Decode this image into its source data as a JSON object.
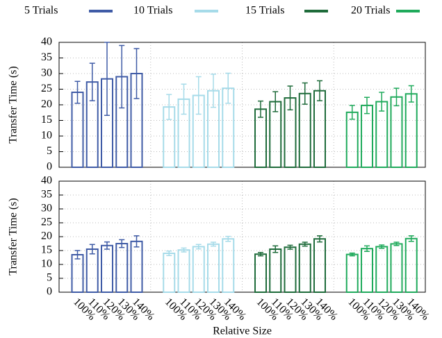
{
  "chart_data": [
    {
      "type": "bar",
      "ylabel": "Transfer Time (s)",
      "ylim": [
        0,
        40
      ],
      "yticks": [
        0,
        5,
        10,
        15,
        20,
        25,
        30,
        35,
        40
      ],
      "grid": true,
      "legend": "top",
      "series": [
        {
          "name": "5 Trials",
          "color": "#3f5ba6",
          "values": [
            24,
            27.3,
            28.3,
            29,
            30
          ],
          "errors": [
            3.5,
            6,
            11.7,
            10,
            8
          ]
        },
        {
          "name": "10 Trials",
          "color": "#a6dbe9",
          "values": [
            19.3,
            21.8,
            23,
            24.5,
            25.3
          ],
          "errors": [
            4,
            4.8,
            6,
            5.3,
            4.8
          ]
        },
        {
          "name": "15 Trials",
          "color": "#1e6b3a",
          "values": [
            18.6,
            21,
            22.2,
            23.6,
            24.5
          ],
          "errors": [
            2.6,
            3.2,
            3.8,
            3.4,
            3.2
          ]
        },
        {
          "name": "20 Trials",
          "color": "#1faa5b",
          "values": [
            17.6,
            19.8,
            21,
            22.5,
            23.5
          ],
          "errors": [
            2.2,
            2.6,
            3,
            2.8,
            2.6
          ]
        }
      ]
    },
    {
      "type": "bar",
      "ylabel": "Transfer Time (s)",
      "xlabel": "Relative Size",
      "categories": [
        "100%",
        "110%",
        "120%",
        "130%",
        "140%"
      ],
      "ylim": [
        0,
        40
      ],
      "yticks": [
        0,
        5,
        10,
        15,
        20,
        25,
        30,
        35,
        40
      ],
      "grid": true,
      "series": [
        {
          "color": "#3f5ba6",
          "values": [
            13.5,
            15.5,
            16.8,
            17.5,
            18.3
          ],
          "errors": [
            1.5,
            1.7,
            1.3,
            1.4,
            2
          ]
        },
        {
          "color": "#a6dbe9",
          "values": [
            14,
            15.2,
            16.4,
            17.3,
            19.2
          ],
          "errors": [
            0.8,
            0.7,
            0.8,
            0.7,
            0.9
          ]
        },
        {
          "color": "#1e6b3a",
          "values": [
            13.7,
            15.5,
            16.2,
            17.3,
            19.2
          ],
          "errors": [
            0.6,
            1.2,
            0.7,
            0.7,
            1.1
          ]
        },
        {
          "color": "#1faa5b",
          "values": [
            13.6,
            15.7,
            16.4,
            17.4,
            19.3
          ],
          "errors": [
            0.5,
            1,
            0.6,
            0.6,
            1
          ]
        }
      ]
    }
  ]
}
